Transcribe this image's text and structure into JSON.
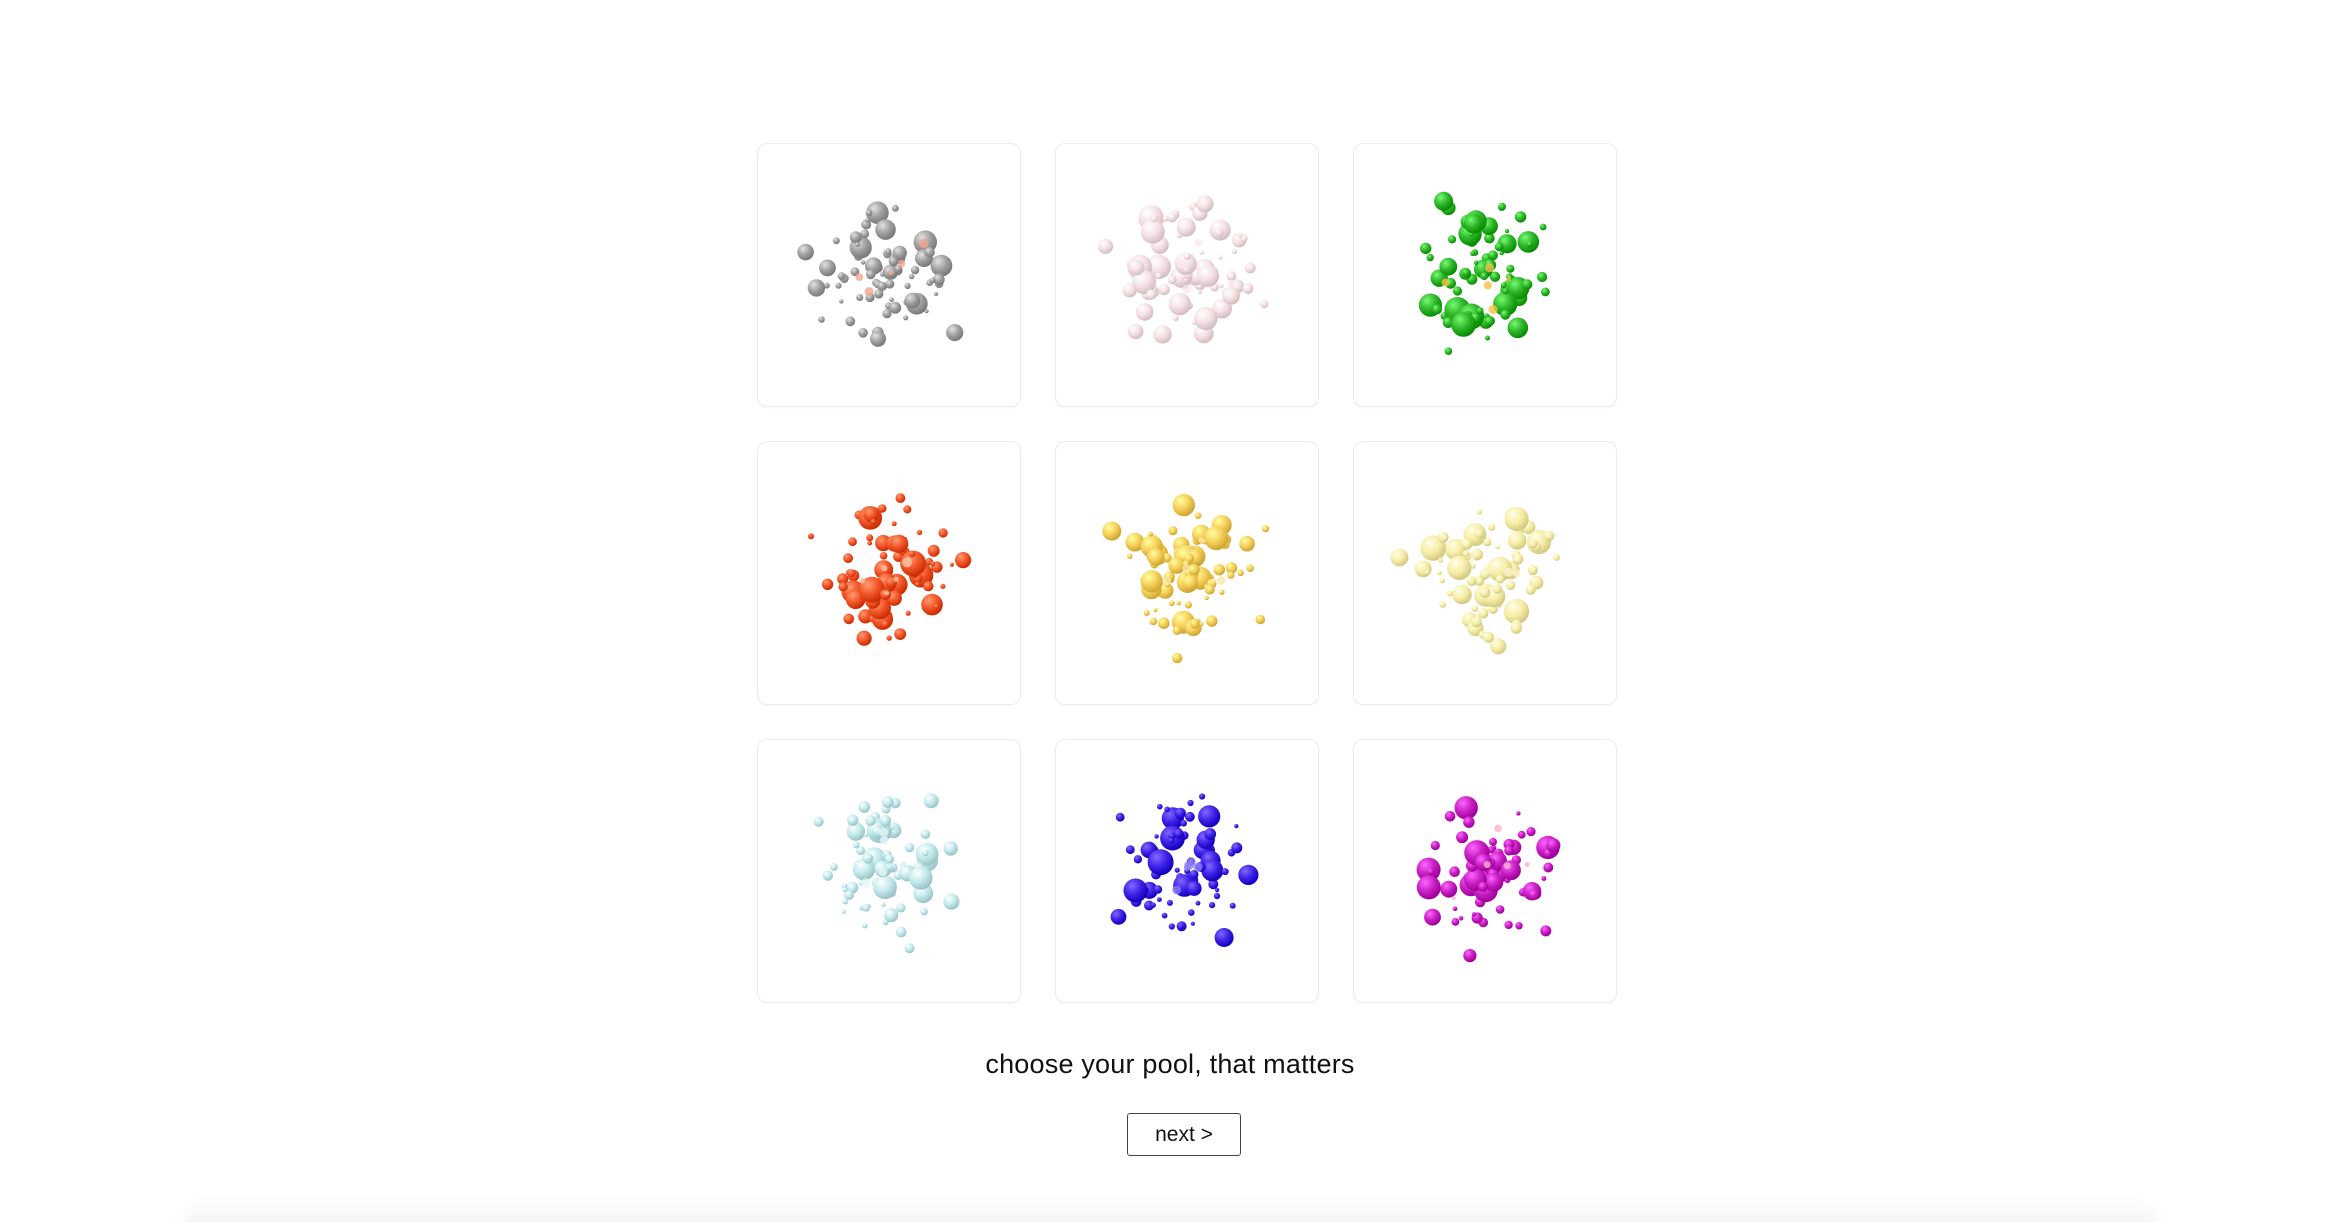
{
  "pools": [
    {
      "id": "gray",
      "icon": "gray-particle-cluster-icon",
      "color": "#9b9b9b",
      "accent": "#f0a089",
      "opacity": 0.95,
      "seed": 11
    },
    {
      "id": "pale-pink",
      "icon": "pale-pink-particle-cluster-icon",
      "color": "#f3dcdf",
      "accent": "#f7e6e8",
      "opacity": 0.85,
      "seed": 23
    },
    {
      "id": "green",
      "icon": "green-particle-cluster-icon",
      "color": "#2fb52a",
      "accent": "#f4c24a",
      "opacity": 1,
      "seed": 37
    },
    {
      "id": "orange-red",
      "icon": "orange-red-particle-cluster-icon",
      "color": "#f2552a",
      "accent": "#f6c8a8",
      "opacity": 1,
      "seed": 41
    },
    {
      "id": "yellow",
      "icon": "yellow-particle-cluster-icon",
      "color": "#f5cf5a",
      "accent": "#fbe7a6",
      "opacity": 1,
      "seed": 53
    },
    {
      "id": "pale-yellow",
      "icon": "pale-yellow-particle-cluster-icon",
      "color": "#f6ec9e",
      "accent": "#fbf3c8",
      "opacity": 0.9,
      "seed": 67
    },
    {
      "id": "light-cyan",
      "icon": "light-cyan-particle-cluster-icon",
      "color": "#bfe9ec",
      "accent": "#e2f6f7",
      "opacity": 0.95,
      "seed": 71
    },
    {
      "id": "blue-violet",
      "icon": "blue-violet-particle-cluster-icon",
      "color": "#3d22e6",
      "accent": "#8a7cf3",
      "opacity": 1,
      "seed": 83
    },
    {
      "id": "magenta",
      "icon": "magenta-particle-cluster-icon",
      "color": "#c71fc2",
      "accent": "#f6b4c9",
      "opacity": 1,
      "seed": 97
    }
  ],
  "caption": "choose your pool, that matters",
  "next_label": "next >"
}
